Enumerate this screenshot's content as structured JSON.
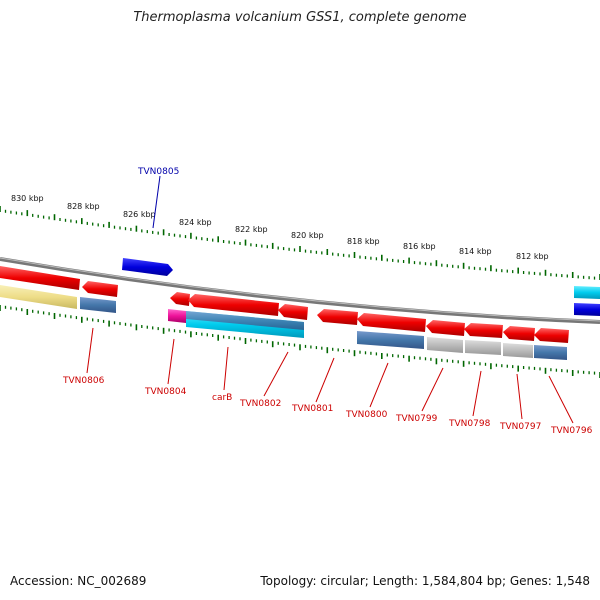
{
  "title": "Thermoplasma volcanium GSS1, complete genome",
  "footer": {
    "accession": "Accession: NC_002689",
    "summary": "Topology: circular; Length: 1,584,804 bp; Genes: 1,548"
  },
  "colors": {
    "label_forward": "#0000aa",
    "label_reverse": "#cc0000",
    "backbone": "#888888",
    "tick": "#006600",
    "gene_red": "#ee0000",
    "gene_blue": "#0000dd",
    "gene_cyan": "#00ccee",
    "gene_steel": "#4477aa",
    "gene_yellow": "#eedd88",
    "gene_gray": "#bbbbbb",
    "gene_magenta": "#ee1199"
  },
  "scale_labels": [
    "830 kbp",
    "828 kbp",
    "826 kbp",
    "824 kbp",
    "822 kbp",
    "820 kbp",
    "818 kbp",
    "816 kbp",
    "814 kbp",
    "812 kbp"
  ],
  "gene_labels": [
    {
      "text": "TVN0805",
      "strand": "forward"
    },
    {
      "text": "TVN0806",
      "strand": "reverse"
    },
    {
      "text": "TVN0804",
      "strand": "reverse"
    },
    {
      "text": "carB",
      "strand": "reverse"
    },
    {
      "text": "TVN0802",
      "strand": "reverse"
    },
    {
      "text": "TVN0801",
      "strand": "reverse"
    },
    {
      "text": "TVN0800",
      "strand": "reverse"
    },
    {
      "text": "TVN0799",
      "strand": "reverse"
    },
    {
      "text": "TVN0798",
      "strand": "reverse"
    },
    {
      "text": "TVN0797",
      "strand": "reverse"
    },
    {
      "text": "TVN0796",
      "strand": "reverse"
    }
  ]
}
